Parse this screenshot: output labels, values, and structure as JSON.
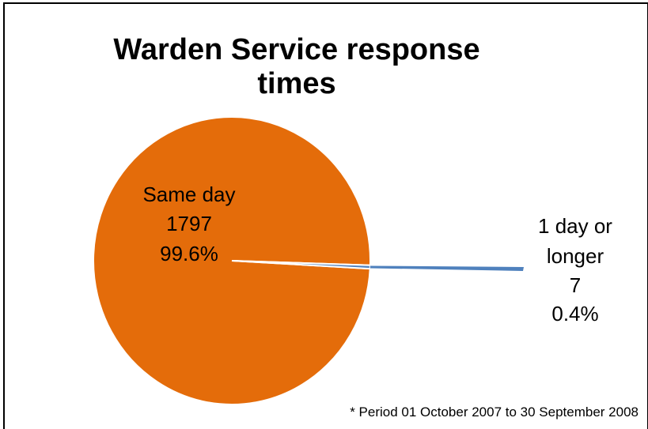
{
  "chart_data": {
    "type": "pie",
    "title_lines": [
      "Warden Service response",
      "times"
    ],
    "slices": [
      {
        "label": "Same day",
        "value": 1797,
        "percent": "99.6%",
        "color": "#e46c0a"
      },
      {
        "label": "1 day or longer",
        "label_lines": [
          "1 day or",
          "longer"
        ],
        "value": 7,
        "percent": "0.4%",
        "color": "#4f81bd"
      }
    ],
    "footnote": "* Period 01 October 2007 to 30 September 2008"
  }
}
